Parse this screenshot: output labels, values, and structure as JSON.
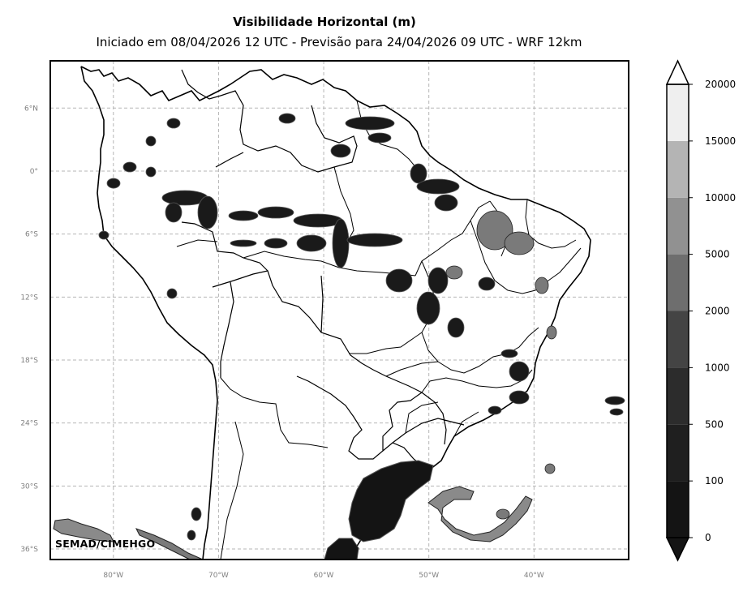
{
  "title": "Visibilidade Horizontal (m)",
  "subtitle": "Iniciado em 08/04/2026 12 UTC - Previsão para 24/04/2026 09 UTC - WRF 12km",
  "credit": "SEMAD/CIMEHGO",
  "map": {
    "lon_range": [
      -86,
      -31
    ],
    "lat_range": [
      -37,
      10.5
    ],
    "gridlines": true,
    "lat_ticks": [
      {
        "value": 6,
        "label": "6°N"
      },
      {
        "value": 0,
        "label": "0°"
      },
      {
        "value": -6,
        "label": "6°S"
      },
      {
        "value": -12,
        "label": "12°S"
      },
      {
        "value": -18,
        "label": "18°S"
      },
      {
        "value": -24,
        "label": "24°S"
      },
      {
        "value": -30,
        "label": "30°S"
      },
      {
        "value": -36,
        "label": "36°S"
      }
    ],
    "lon_ticks": [
      {
        "value": -80,
        "label": "80°W"
      },
      {
        "value": -70,
        "label": "70°W"
      },
      {
        "value": -60,
        "label": "60°W"
      },
      {
        "value": -50,
        "label": "50°W"
      },
      {
        "value": -40,
        "label": "40°W"
      }
    ]
  },
  "colorbar": {
    "orientation": "vertical",
    "extend": "both",
    "levels": [
      {
        "label": "0",
        "color": "#141414"
      },
      {
        "label": "100",
        "color": "#1f1f1f"
      },
      {
        "label": "500",
        "color": "#2c2c2c"
      },
      {
        "label": "1000",
        "color": "#444444"
      },
      {
        "label": "2000",
        "color": "#6e6e6e"
      },
      {
        "label": "5000",
        "color": "#919191"
      },
      {
        "label": "10000",
        "color": "#b4b4b4"
      },
      {
        "label": "15000",
        "color": "#efefef"
      },
      {
        "label": "20000",
        "color": "#ffffff"
      }
    ]
  }
}
